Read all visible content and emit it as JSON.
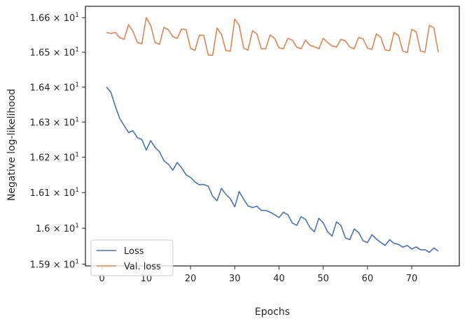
{
  "chart_data": {
    "type": "line",
    "title": "",
    "xlabel": "Epochs",
    "ylabel": "Negative log-likelihood",
    "yscale": "log",
    "xlim": [
      -3.75,
      80.75
    ],
    "ylim": [
      15.895,
      16.633
    ],
    "grid": false,
    "legend_position": "lower-left",
    "x_ticks": [
      0,
      10,
      20,
      30,
      40,
      50,
      60,
      70
    ],
    "y_ticks": [
      {
        "value": 15.9,
        "mantissa": "1.59",
        "exponent": "1"
      },
      {
        "value": 16.0,
        "mantissa": "1.6",
        "exponent": "1"
      },
      {
        "value": 16.1,
        "mantissa": "1.61",
        "exponent": "1"
      },
      {
        "value": 16.2,
        "mantissa": "1.62",
        "exponent": "1"
      },
      {
        "value": 16.3,
        "mantissa": "1.63",
        "exponent": "1"
      },
      {
        "value": 16.4,
        "mantissa": "1.64",
        "exponent": "1"
      },
      {
        "value": 16.5,
        "mantissa": "1.65",
        "exponent": "1"
      },
      {
        "value": 16.6,
        "mantissa": "1.66",
        "exponent": "1"
      }
    ],
    "tick_label_times": "×",
    "tick_label_base": "10",
    "x": [
      1,
      2,
      3,
      4,
      5,
      6,
      7,
      8,
      9,
      10,
      11,
      12,
      13,
      14,
      15,
      16,
      17,
      18,
      19,
      20,
      21,
      22,
      23,
      24,
      25,
      26,
      27,
      28,
      29,
      30,
      31,
      32,
      33,
      34,
      35,
      36,
      37,
      38,
      39,
      40,
      41,
      42,
      43,
      44,
      45,
      46,
      47,
      48,
      49,
      50,
      51,
      52,
      53,
      54,
      55,
      56,
      57,
      58,
      59,
      60,
      61,
      62,
      63,
      64,
      65,
      66,
      67,
      68,
      69,
      70,
      71,
      72,
      73,
      74,
      75,
      76
    ],
    "series": [
      {
        "name": "Loss",
        "color": "#4c72b0",
        "values": [
          16.4,
          16.385,
          16.345,
          16.31,
          16.29,
          16.27,
          16.275,
          16.255,
          16.25,
          16.22,
          16.247,
          16.228,
          16.215,
          16.19,
          16.18,
          16.163,
          16.185,
          16.17,
          16.15,
          16.143,
          16.13,
          16.122,
          16.123,
          16.118,
          16.09,
          16.077,
          16.112,
          16.095,
          16.083,
          16.06,
          16.103,
          16.082,
          16.063,
          16.058,
          16.062,
          16.05,
          16.05,
          16.045,
          16.038,
          16.03,
          16.045,
          16.038,
          16.015,
          16.008,
          16.032,
          16.025,
          16.002,
          15.99,
          16.028,
          16.015,
          15.99,
          15.978,
          16.018,
          16.008,
          15.973,
          15.968,
          15.998,
          15.988,
          15.965,
          15.96,
          15.982,
          15.97,
          15.96,
          15.952,
          15.968,
          15.958,
          15.955,
          15.947,
          15.952,
          15.942,
          15.948,
          15.94,
          15.94,
          15.933,
          15.945,
          15.936
        ]
      },
      {
        "name": "Val. loss",
        "color": "#dd8452",
        "values": [
          16.557,
          16.554,
          16.557,
          16.542,
          16.537,
          16.58,
          16.56,
          16.528,
          16.524,
          16.6,
          16.578,
          16.528,
          16.523,
          16.572,
          16.565,
          16.545,
          16.54,
          16.567,
          16.565,
          16.512,
          16.505,
          16.549,
          16.549,
          16.492,
          16.491,
          16.57,
          16.552,
          16.505,
          16.503,
          16.596,
          16.578,
          16.512,
          16.506,
          16.562,
          16.553,
          16.51,
          16.51,
          16.55,
          16.54,
          16.513,
          16.51,
          16.54,
          16.535,
          16.515,
          16.51,
          16.535,
          16.52,
          16.516,
          16.51,
          16.54,
          16.528,
          16.518,
          16.515,
          16.537,
          16.533,
          16.515,
          16.51,
          16.543,
          16.538,
          16.512,
          16.508,
          16.553,
          16.543,
          16.507,
          16.504,
          16.557,
          16.549,
          16.503,
          16.499,
          16.566,
          16.559,
          16.503,
          16.5,
          16.578,
          16.57,
          16.5
        ]
      }
    ]
  }
}
